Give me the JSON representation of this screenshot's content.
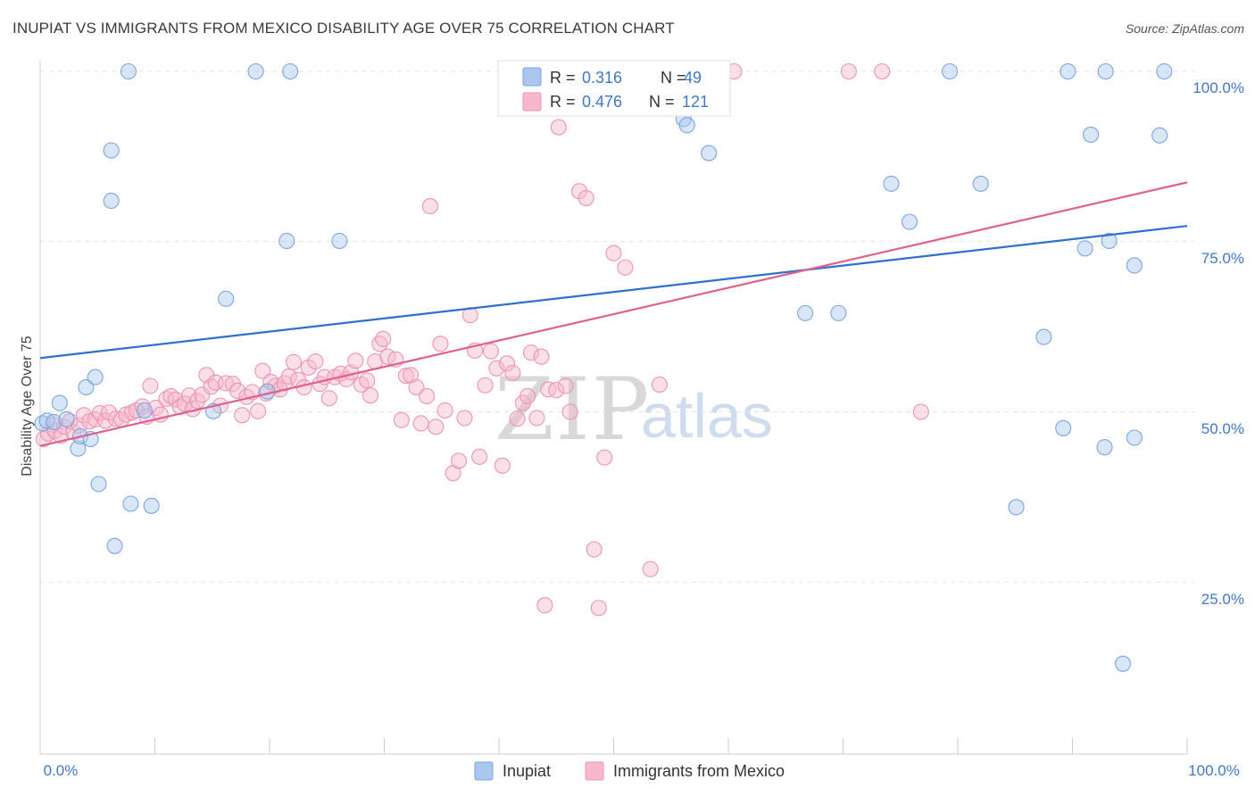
{
  "title": "INUPIAT VS IMMIGRANTS FROM MEXICO DISABILITY AGE OVER 75 CORRELATION CHART",
  "source": "Source: ZipAtlas.com",
  "watermark": {
    "zip": "ZIP",
    "atlas": "atlas"
  },
  "colors": {
    "blue_fill": "#a9c7ef",
    "blue_stroke": "#7aa6e0",
    "blue_line": "#2f6fd0",
    "pink_fill": "#f6b9cc",
    "pink_stroke": "#ee94b1",
    "pink_line": "#e0608e",
    "tick": "#3f78c8",
    "grid": "#e3e3e3"
  },
  "legend": {
    "rows": [
      {
        "r_label": "R = ",
        "r_value": "0.316",
        "n_label": "N = ",
        "n_value": "49"
      },
      {
        "r_label": "R = ",
        "r_value": "0.476",
        "n_label": "N = ",
        "n_value": "121"
      }
    ]
  },
  "bottom_legend": [
    "Inupiat",
    "Immigrants from Mexico"
  ],
  "chart_data": {
    "type": "scatter",
    "title": "INUPIAT VS IMMIGRANTS FROM MEXICO DISABILITY AGE OVER 75 CORRELATION CHART",
    "xlabel": "",
    "ylabel": "Disability Age Over 75",
    "xlim": [
      0,
      100
    ],
    "ylim": [
      0,
      104
    ],
    "x_tick_labels": [
      "0.0%",
      "100.0%"
    ],
    "y_ticks": [
      25,
      50,
      75,
      100
    ],
    "y_tick_labels": [
      "25.0%",
      "50.0%",
      "75.0%",
      "100.0%"
    ],
    "grid": true,
    "legend_position": "top-center",
    "series": [
      {
        "name": "Inupiat",
        "R": 0.316,
        "N": 49,
        "trend": [
          [
            0,
            57.9
          ],
          [
            100,
            77.3
          ]
        ],
        "points": [
          [
            0.2,
            48.3
          ],
          [
            0.6,
            48.7
          ],
          [
            1.2,
            48.5
          ],
          [
            1.7,
            51.3
          ],
          [
            2.3,
            48.9
          ],
          [
            3.3,
            44.6
          ],
          [
            3.5,
            46.4
          ],
          [
            4.0,
            53.6
          ],
          [
            4.4,
            46.0
          ],
          [
            4.8,
            55.1
          ],
          [
            5.1,
            39.4
          ],
          [
            6.2,
            88.4
          ],
          [
            6.2,
            81.0
          ],
          [
            6.5,
            30.3
          ],
          [
            7.7,
            100.0
          ],
          [
            7.9,
            36.5
          ],
          [
            9.1,
            50.2
          ],
          [
            9.7,
            36.2
          ],
          [
            15.1,
            50.1
          ],
          [
            16.2,
            66.6
          ],
          [
            18.8,
            100.0
          ],
          [
            19.8,
            53.0
          ],
          [
            21.5,
            75.1
          ],
          [
            21.8,
            100.0
          ],
          [
            26.1,
            75.1
          ],
          [
            52.7,
            95.5
          ],
          [
            56.1,
            93.0
          ],
          [
            56.4,
            92.1
          ],
          [
            58.3,
            88.0
          ],
          [
            66.7,
            64.5
          ],
          [
            69.6,
            64.5
          ],
          [
            74.2,
            83.5
          ],
          [
            75.8,
            77.9
          ],
          [
            79.3,
            100.0
          ],
          [
            82.0,
            83.5
          ],
          [
            85.1,
            36.0
          ],
          [
            87.5,
            61.0
          ],
          [
            89.2,
            47.6
          ],
          [
            89.6,
            100.0
          ],
          [
            91.1,
            74.0
          ],
          [
            91.6,
            90.7
          ],
          [
            92.8,
            44.8
          ],
          [
            92.9,
            100.0
          ],
          [
            93.2,
            75.1
          ],
          [
            94.4,
            13.0
          ],
          [
            95.4,
            71.5
          ],
          [
            95.4,
            46.2
          ],
          [
            97.6,
            90.6
          ],
          [
            98.0,
            100.0
          ]
        ]
      },
      {
        "name": "Immigrants from Mexico",
        "R": 0.476,
        "N": 121,
        "trend": [
          [
            0,
            45.0
          ],
          [
            100,
            83.7
          ]
        ],
        "points": [
          [
            0.3,
            46.0
          ],
          [
            0.7,
            46.8
          ],
          [
            1.1,
            48.1
          ],
          [
            1.3,
            47.2
          ],
          [
            1.8,
            46.5
          ],
          [
            2.1,
            47.8
          ],
          [
            2.6,
            48.6
          ],
          [
            2.9,
            47.0
          ],
          [
            3.4,
            48.0
          ],
          [
            3.8,
            49.5
          ],
          [
            4.3,
            48.6
          ],
          [
            4.8,
            48.9
          ],
          [
            5.2,
            49.8
          ],
          [
            5.7,
            48.7
          ],
          [
            6.0,
            49.9
          ],
          [
            6.6,
            49.0
          ],
          [
            7.1,
            48.9
          ],
          [
            7.5,
            49.6
          ],
          [
            8.0,
            49.9
          ],
          [
            8.4,
            50.2
          ],
          [
            8.9,
            50.8
          ],
          [
            9.3,
            49.3
          ],
          [
            9.6,
            53.8
          ],
          [
            10.1,
            50.6
          ],
          [
            10.5,
            49.6
          ],
          [
            11.0,
            51.9
          ],
          [
            11.4,
            52.3
          ],
          [
            11.8,
            51.8
          ],
          [
            12.2,
            50.7
          ],
          [
            12.6,
            51.2
          ],
          [
            13.0,
            52.4
          ],
          [
            13.3,
            50.4
          ],
          [
            13.7,
            51.6
          ],
          [
            14.1,
            52.5
          ],
          [
            14.5,
            55.4
          ],
          [
            14.9,
            53.7
          ],
          [
            15.3,
            54.3
          ],
          [
            15.7,
            50.9
          ],
          [
            16.2,
            54.2
          ],
          [
            16.8,
            54.1
          ],
          [
            17.2,
            53.1
          ],
          [
            17.6,
            49.5
          ],
          [
            18.0,
            52.2
          ],
          [
            18.5,
            52.9
          ],
          [
            19.0,
            50.1
          ],
          [
            19.4,
            56.0
          ],
          [
            19.7,
            52.7
          ],
          [
            20.1,
            54.4
          ],
          [
            20.5,
            53.8
          ],
          [
            20.9,
            53.3
          ],
          [
            21.3,
            54.2
          ],
          [
            21.7,
            55.2
          ],
          [
            22.1,
            57.3
          ],
          [
            22.5,
            54.7
          ],
          [
            23.0,
            53.6
          ],
          [
            23.4,
            56.5
          ],
          [
            24.0,
            57.4
          ],
          [
            24.4,
            54.1
          ],
          [
            24.8,
            55.1
          ],
          [
            25.2,
            52.0
          ],
          [
            25.7,
            55.1
          ],
          [
            26.2,
            55.6
          ],
          [
            26.7,
            54.8
          ],
          [
            27.1,
            55.8
          ],
          [
            27.5,
            57.5
          ],
          [
            28.0,
            54.0
          ],
          [
            28.5,
            54.6
          ],
          [
            28.8,
            52.4
          ],
          [
            29.2,
            57.4
          ],
          [
            29.6,
            60.0
          ],
          [
            29.9,
            60.7
          ],
          [
            30.3,
            58.1
          ],
          [
            31.0,
            57.7
          ],
          [
            31.5,
            48.8
          ],
          [
            31.9,
            55.3
          ],
          [
            32.3,
            55.4
          ],
          [
            32.8,
            53.6
          ],
          [
            33.2,
            48.3
          ],
          [
            33.7,
            52.3
          ],
          [
            34.0,
            80.2
          ],
          [
            34.5,
            47.8
          ],
          [
            34.9,
            60.0
          ],
          [
            35.3,
            50.2
          ],
          [
            36.0,
            41.0
          ],
          [
            36.5,
            42.8
          ],
          [
            37.0,
            49.1
          ],
          [
            37.5,
            64.2
          ],
          [
            37.9,
            59.0
          ],
          [
            38.3,
            43.4
          ],
          [
            38.8,
            53.9
          ],
          [
            39.3,
            58.9
          ],
          [
            39.8,
            56.4
          ],
          [
            40.3,
            42.1
          ],
          [
            40.7,
            57.1
          ],
          [
            41.2,
            55.7
          ],
          [
            41.6,
            49.0
          ],
          [
            42.1,
            51.3
          ],
          [
            42.5,
            52.3
          ],
          [
            42.8,
            58.7
          ],
          [
            43.3,
            49.1
          ],
          [
            43.7,
            58.1
          ],
          [
            44.3,
            53.3
          ],
          [
            45.0,
            53.2
          ],
          [
            45.2,
            91.8
          ],
          [
            45.8,
            53.8
          ],
          [
            46.2,
            50.0
          ],
          [
            47.0,
            82.4
          ],
          [
            47.6,
            81.4
          ],
          [
            48.3,
            29.8
          ],
          [
            48.7,
            21.2
          ],
          [
            49.2,
            43.3
          ],
          [
            50.0,
            73.3
          ],
          [
            51.0,
            71.2
          ],
          [
            53.2,
            26.9
          ],
          [
            54.0,
            54.0
          ],
          [
            55.2,
            100.0
          ],
          [
            60.5,
            100.0
          ],
          [
            70.5,
            100.0
          ],
          [
            73.4,
            100.0
          ],
          [
            76.8,
            50.0
          ],
          [
            44.0,
            21.6
          ]
        ]
      }
    ]
  }
}
